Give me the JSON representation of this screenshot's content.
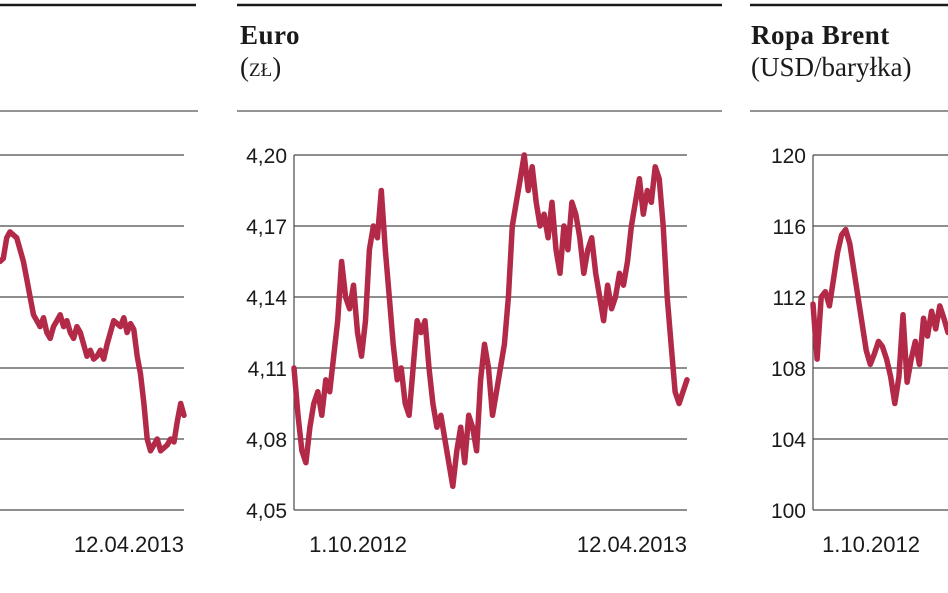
{
  "colors": {
    "line": "#b22a48",
    "grid": "#4a4a4a",
    "text": "#1a1a1a"
  },
  "chart_data": [
    {
      "type": "line",
      "title": "",
      "subtitle": "",
      "ylim": [
        0,
        6
      ],
      "yticks": [],
      "x_first": "",
      "x_last": "12.04.2013",
      "grid": true,
      "series": [
        {
          "values": [
            4.2,
            4.25,
            4.6,
            4.7,
            4.65,
            4.6,
            4.4,
            4.2,
            3.9,
            3.6,
            3.3,
            3.2,
            3.1,
            3.25,
            3.0,
            2.9,
            3.1,
            3.2,
            3.3,
            3.1,
            3.2,
            3.0,
            2.9,
            3.1,
            3.0,
            2.8,
            2.6,
            2.7,
            2.55,
            2.6,
            2.7,
            2.55,
            2.8,
            3.0,
            3.2,
            3.15,
            3.1,
            3.25,
            3.0,
            3.15,
            3.05,
            2.6,
            2.3,
            1.8,
            1.2,
            1.0,
            1.1,
            1.2,
            1.0,
            1.05,
            1.1,
            1.2,
            1.15,
            1.5,
            1.8,
            1.6
          ]
        }
      ]
    },
    {
      "type": "line",
      "title": "Euro",
      "subtitle": "(zł)",
      "ylim": [
        4.05,
        4.2
      ],
      "yticks": [
        "4,05",
        "4,08",
        "4,11",
        "4,14",
        "4,17",
        "4,20"
      ],
      "x_first": "1.10.2012",
      "x_last": "12.04.2013",
      "grid": true,
      "series": [
        {
          "values": [
            4.11,
            4.09,
            4.075,
            4.07,
            4.085,
            4.095,
            4.1,
            4.09,
            4.105,
            4.1,
            4.115,
            4.13,
            4.155,
            4.14,
            4.135,
            4.145,
            4.125,
            4.115,
            4.13,
            4.16,
            4.17,
            4.165,
            4.185,
            4.16,
            4.14,
            4.12,
            4.105,
            4.11,
            4.095,
            4.09,
            4.11,
            4.13,
            4.125,
            4.13,
            4.11,
            4.095,
            4.085,
            4.09,
            4.08,
            4.07,
            4.06,
            4.075,
            4.085,
            4.07,
            4.09,
            4.085,
            4.075,
            4.105,
            4.12,
            4.11,
            4.09,
            4.1,
            4.11,
            4.12,
            4.14,
            4.17,
            4.18,
            4.19,
            4.2,
            4.185,
            4.195,
            4.18,
            4.17,
            4.175,
            4.165,
            4.18,
            4.16,
            4.15,
            4.17,
            4.16,
            4.18,
            4.175,
            4.165,
            4.15,
            4.16,
            4.165,
            4.15,
            4.14,
            4.13,
            4.145,
            4.135,
            4.14,
            4.15,
            4.145,
            4.155,
            4.17,
            4.18,
            4.19,
            4.175,
            4.185,
            4.18,
            4.195,
            4.19,
            4.17,
            4.14,
            4.12,
            4.1,
            4.095,
            4.1,
            4.105
          ]
        }
      ]
    },
    {
      "type": "line",
      "title": "Ropa Brent",
      "subtitle": "(USD/baryłka)",
      "ylim": [
        100,
        120
      ],
      "yticks": [
        "100",
        "104",
        "108",
        "112",
        "116",
        "120"
      ],
      "x_first": "1.10.2012",
      "x_last": "",
      "grid": true,
      "series": [
        {
          "values": [
            111.6,
            108.5,
            112.0,
            112.3,
            111.5,
            113.0,
            114.5,
            115.5,
            115.8,
            115.0,
            113.5,
            112.0,
            110.5,
            109.0,
            108.2,
            108.8,
            109.5,
            109.2,
            108.5,
            107.5,
            106.0,
            107.5,
            111.0,
            107.2,
            108.5,
            109.5,
            108.2,
            110.8,
            109.8,
            111.2,
            110.2,
            111.5,
            110.8,
            110.0
          ]
        }
      ]
    }
  ]
}
